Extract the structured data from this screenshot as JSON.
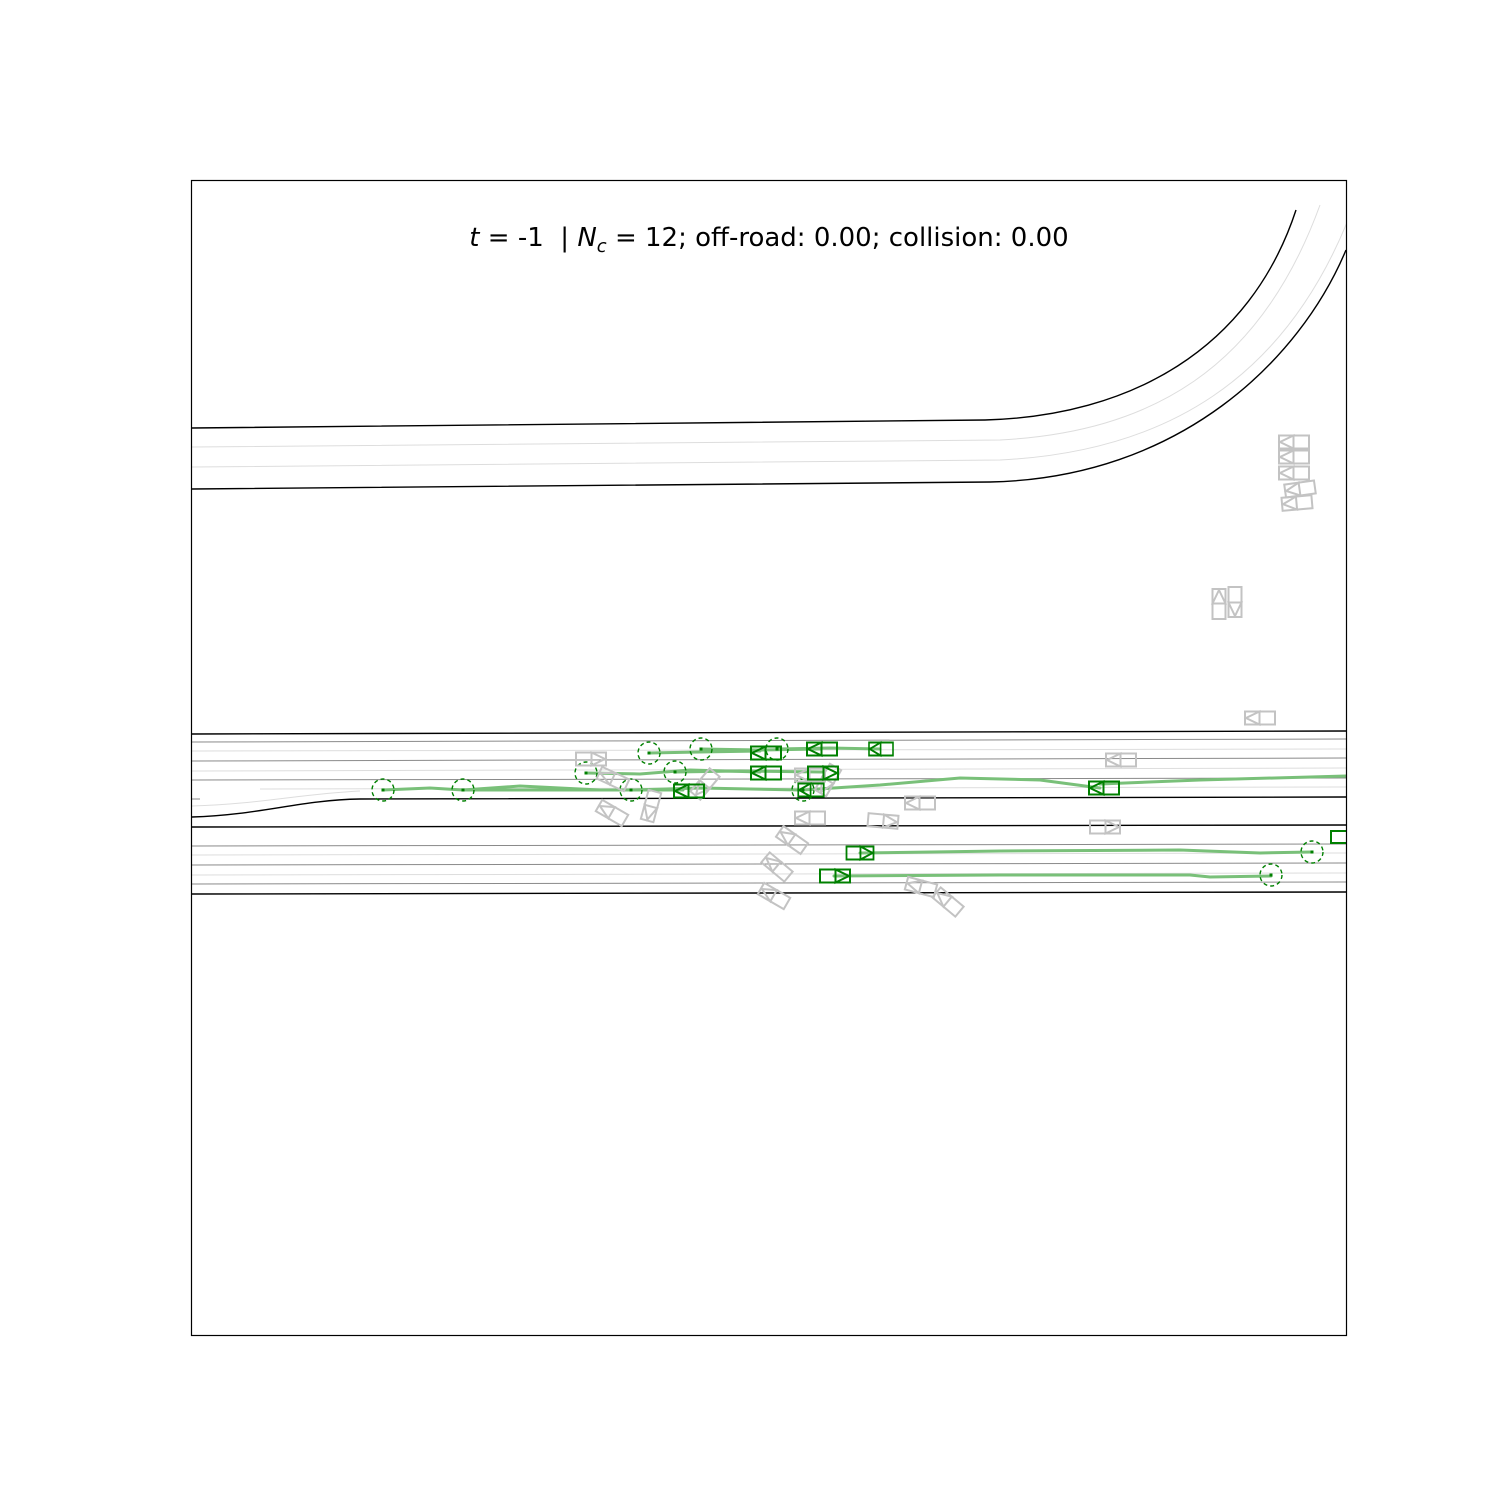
{
  "header": {
    "t_symbol": "t",
    "t_eq": " = ",
    "t_value": "-1",
    "sep": "  | ",
    "nc_symbol": "N",
    "nc_sub": "c",
    "nc_eq": " = ",
    "nc_value": "12",
    "rest": "; off-road: 0.00; collision: 0.00"
  },
  "colors": {
    "road_edge": "#000000",
    "lane_line": "#8a8a8a",
    "centerline": "#dddddd",
    "controlled_agent": "#008000",
    "trajectory": "#79c079",
    "other_agent": "#c3c3c3"
  },
  "legend_semantics": {
    "controlled_agents": "green boxes with arrows and dashed goal circles",
    "other_agents": "gray boxes"
  }
}
